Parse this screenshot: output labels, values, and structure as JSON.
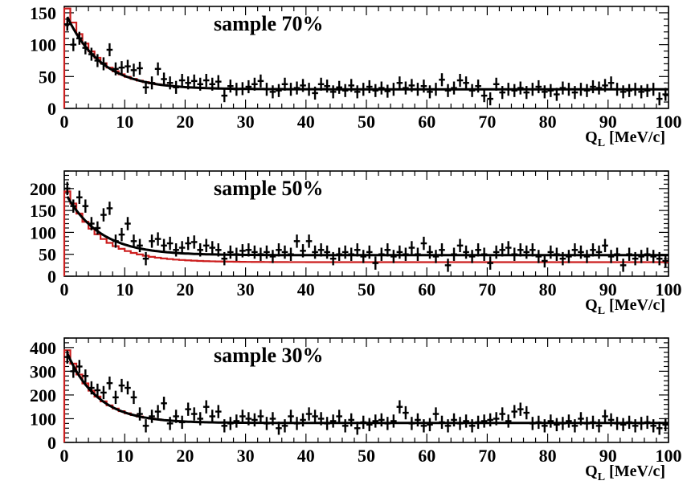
{
  "chart_data": [
    {
      "type": "scatter",
      "title": "sample 70%",
      "xlabel": "Q",
      "xlabel_sub": "L",
      "xlabel_unit": " [MeV/c]",
      "xlim": [
        0,
        100
      ],
      "ylim": [
        0,
        160
      ],
      "xticks": [
        0,
        10,
        20,
        30,
        40,
        50,
        60,
        70,
        80,
        90,
        100
      ],
      "yticks": [
        0,
        50,
        100,
        150
      ],
      "grid": false,
      "amplitude": 130,
      "tail": 30,
      "decay": 5.5,
      "model_offset": 0,
      "points": [
        [
          0.5,
          132
        ],
        [
          1.5,
          100
        ],
        [
          2.5,
          110
        ],
        [
          3.5,
          95
        ],
        [
          4.5,
          85
        ],
        [
          5.5,
          75
        ],
        [
          6.5,
          70
        ],
        [
          7.5,
          92
        ],
        [
          8.5,
          62
        ],
        [
          9.5,
          64
        ],
        [
          10.5,
          66
        ],
        [
          11.5,
          60
        ],
        [
          12.5,
          63
        ],
        [
          13.5,
          33
        ],
        [
          14.5,
          40
        ],
        [
          15.5,
          62
        ],
        [
          16.5,
          46
        ],
        [
          17.5,
          40
        ],
        [
          18.5,
          33
        ],
        [
          19.5,
          44
        ],
        [
          20.5,
          40
        ],
        [
          21.5,
          43
        ],
        [
          22.5,
          38
        ],
        [
          23.5,
          44
        ],
        [
          24.5,
          38
        ],
        [
          25.5,
          42
        ],
        [
          26.5,
          20
        ],
        [
          27.5,
          35
        ],
        [
          28.5,
          30
        ],
        [
          29.5,
          31
        ],
        [
          30.5,
          34
        ],
        [
          31.5,
          38
        ],
        [
          32.5,
          43
        ],
        [
          33.5,
          30
        ],
        [
          34.5,
          26
        ],
        [
          35.5,
          28
        ],
        [
          36.5,
          38
        ],
        [
          37.5,
          30
        ],
        [
          38.5,
          32
        ],
        [
          39.5,
          36
        ],
        [
          40.5,
          30
        ],
        [
          41.5,
          24
        ],
        [
          42.5,
          38
        ],
        [
          43.5,
          35
        ],
        [
          44.5,
          26
        ],
        [
          45.5,
          33
        ],
        [
          46.5,
          28
        ],
        [
          47.5,
          36
        ],
        [
          48.5,
          26
        ],
        [
          49.5,
          30
        ],
        [
          50.5,
          34
        ],
        [
          51.5,
          28
        ],
        [
          52.5,
          32
        ],
        [
          53.5,
          27
        ],
        [
          54.5,
          30
        ],
        [
          55.5,
          40
        ],
        [
          56.5,
          32
        ],
        [
          57.5,
          36
        ],
        [
          58.5,
          30
        ],
        [
          59.5,
          35
        ],
        [
          60.5,
          26
        ],
        [
          61.5,
          30
        ],
        [
          62.5,
          45
        ],
        [
          63.5,
          28
        ],
        [
          64.5,
          32
        ],
        [
          65.5,
          44
        ],
        [
          66.5,
          40
        ],
        [
          67.5,
          28
        ],
        [
          68.5,
          35
        ],
        [
          69.5,
          20
        ],
        [
          70.5,
          15
        ],
        [
          71.5,
          38
        ],
        [
          72.5,
          25
        ],
        [
          73.5,
          30
        ],
        [
          74.5,
          28
        ],
        [
          75.5,
          32
        ],
        [
          76.5,
          25
        ],
        [
          77.5,
          30
        ],
        [
          78.5,
          34
        ],
        [
          79.5,
          26
        ],
        [
          80.5,
          28
        ],
        [
          81.5,
          22
        ],
        [
          82.5,
          32
        ],
        [
          83.5,
          30
        ],
        [
          84.5,
          25
        ],
        [
          85.5,
          30
        ],
        [
          86.5,
          28
        ],
        [
          87.5,
          34
        ],
        [
          88.5,
          32
        ],
        [
          89.5,
          36
        ],
        [
          90.5,
          40
        ],
        [
          91.5,
          30
        ],
        [
          92.5,
          26
        ],
        [
          93.5,
          28
        ],
        [
          94.5,
          30
        ],
        [
          95.5,
          26
        ],
        [
          96.5,
          28
        ],
        [
          97.5,
          30
        ],
        [
          98.5,
          15
        ],
        [
          99.5,
          22
        ]
      ]
    },
    {
      "type": "scatter",
      "title": "sample 50%",
      "xlabel": "Q",
      "xlabel_sub": "L",
      "xlabel_unit": " [MeV/c]",
      "xlim": [
        0,
        100
      ],
      "ylim": [
        0,
        240
      ],
      "xticks": [
        0,
        10,
        20,
        30,
        40,
        50,
        60,
        70,
        80,
        90,
        100
      ],
      "yticks": [
        0,
        50,
        100,
        150,
        200
      ],
      "grid": false,
      "amplitude": 160,
      "tail": 40,
      "decay": 5.5,
      "model_offset": 8,
      "points": [
        [
          0.5,
          200
        ],
        [
          1.5,
          160
        ],
        [
          2.5,
          180
        ],
        [
          3.5,
          160
        ],
        [
          4.5,
          120
        ],
        [
          5.5,
          110
        ],
        [
          6.5,
          140
        ],
        [
          7.5,
          155
        ],
        [
          8.5,
          80
        ],
        [
          9.5,
          95
        ],
        [
          10.5,
          120
        ],
        [
          11.5,
          80
        ],
        [
          12.5,
          70
        ],
        [
          13.5,
          40
        ],
        [
          14.5,
          80
        ],
        [
          15.5,
          85
        ],
        [
          16.5,
          70
        ],
        [
          17.5,
          75
        ],
        [
          18.5,
          60
        ],
        [
          19.5,
          65
        ],
        [
          20.5,
          75
        ],
        [
          21.5,
          78
        ],
        [
          22.5,
          60
        ],
        [
          23.5,
          70
        ],
        [
          24.5,
          65
        ],
        [
          25.5,
          60
        ],
        [
          26.5,
          40
        ],
        [
          27.5,
          55
        ],
        [
          28.5,
          50
        ],
        [
          29.5,
          58
        ],
        [
          30.5,
          60
        ],
        [
          31.5,
          55
        ],
        [
          32.5,
          50
        ],
        [
          33.5,
          55
        ],
        [
          34.5,
          45
        ],
        [
          35.5,
          60
        ],
        [
          36.5,
          55
        ],
        [
          37.5,
          50
        ],
        [
          38.5,
          80
        ],
        [
          39.5,
          58
        ],
        [
          40.5,
          80
        ],
        [
          41.5,
          55
        ],
        [
          42.5,
          60
        ],
        [
          43.5,
          55
        ],
        [
          44.5,
          40
        ],
        [
          45.5,
          50
        ],
        [
          46.5,
          55
        ],
        [
          47.5,
          50
        ],
        [
          48.5,
          60
        ],
        [
          49.5,
          45
        ],
        [
          50.5,
          55
        ],
        [
          51.5,
          30
        ],
        [
          52.5,
          50
        ],
        [
          53.5,
          60
        ],
        [
          54.5,
          45
        ],
        [
          55.5,
          55
        ],
        [
          56.5,
          50
        ],
        [
          57.5,
          65
        ],
        [
          58.5,
          50
        ],
        [
          59.5,
          75
        ],
        [
          60.5,
          55
        ],
        [
          61.5,
          45
        ],
        [
          62.5,
          60
        ],
        [
          63.5,
          25
        ],
        [
          64.5,
          50
        ],
        [
          65.5,
          70
        ],
        [
          66.5,
          55
        ],
        [
          67.5,
          45
        ],
        [
          68.5,
          60
        ],
        [
          69.5,
          50
        ],
        [
          70.5,
          30
        ],
        [
          71.5,
          55
        ],
        [
          72.5,
          60
        ],
        [
          73.5,
          65
        ],
        [
          74.5,
          50
        ],
        [
          75.5,
          60
        ],
        [
          76.5,
          55
        ],
        [
          77.5,
          60
        ],
        [
          78.5,
          45
        ],
        [
          79.5,
          35
        ],
        [
          80.5,
          55
        ],
        [
          81.5,
          50
        ],
        [
          82.5,
          40
        ],
        [
          83.5,
          45
        ],
        [
          84.5,
          60
        ],
        [
          85.5,
          55
        ],
        [
          86.5,
          45
        ],
        [
          87.5,
          60
        ],
        [
          88.5,
          55
        ],
        [
          89.5,
          70
        ],
        [
          90.5,
          45
        ],
        [
          91.5,
          50
        ],
        [
          92.5,
          25
        ],
        [
          93.5,
          50
        ],
        [
          94.5,
          40
        ],
        [
          95.5,
          45
        ],
        [
          96.5,
          50
        ],
        [
          97.5,
          45
        ],
        [
          98.5,
          40
        ],
        [
          99.5,
          35
        ]
      ]
    },
    {
      "type": "scatter",
      "title": "sample 30%",
      "xlabel": "Q",
      "xlabel_sub": "L",
      "xlabel_unit": " [MeV/c]",
      "xlim": [
        0,
        100
      ],
      "ylim": [
        0,
        440
      ],
      "xticks": [
        0,
        10,
        20,
        30,
        40,
        50,
        60,
        70,
        80,
        90,
        100
      ],
      "yticks": [
        0,
        100,
        200,
        300,
        400
      ],
      "grid": false,
      "amplitude": 330,
      "tail": 82,
      "decay": 5,
      "model_offset": 0,
      "points": [
        [
          0.5,
          360
        ],
        [
          1.5,
          300
        ],
        [
          2.5,
          320
        ],
        [
          3.5,
          280
        ],
        [
          4.5,
          230
        ],
        [
          5.5,
          220
        ],
        [
          6.5,
          210
        ],
        [
          7.5,
          250
        ],
        [
          8.5,
          190
        ],
        [
          9.5,
          240
        ],
        [
          10.5,
          230
        ],
        [
          11.5,
          190
        ],
        [
          12.5,
          120
        ],
        [
          13.5,
          70
        ],
        [
          14.5,
          110
        ],
        [
          15.5,
          130
        ],
        [
          16.5,
          165
        ],
        [
          17.5,
          80
        ],
        [
          18.5,
          110
        ],
        [
          19.5,
          85
        ],
        [
          20.5,
          140
        ],
        [
          21.5,
          120
        ],
        [
          22.5,
          100
        ],
        [
          23.5,
          150
        ],
        [
          24.5,
          110
        ],
        [
          25.5,
          130
        ],
        [
          26.5,
          70
        ],
        [
          27.5,
          80
        ],
        [
          28.5,
          90
        ],
        [
          29.5,
          110
        ],
        [
          30.5,
          100
        ],
        [
          31.5,
          95
        ],
        [
          32.5,
          110
        ],
        [
          33.5,
          80
        ],
        [
          34.5,
          100
        ],
        [
          35.5,
          60
        ],
        [
          36.5,
          70
        ],
        [
          37.5,
          110
        ],
        [
          38.5,
          80
        ],
        [
          39.5,
          95
        ],
        [
          40.5,
          120
        ],
        [
          41.5,
          110
        ],
        [
          42.5,
          100
        ],
        [
          43.5,
          80
        ],
        [
          44.5,
          90
        ],
        [
          45.5,
          110
        ],
        [
          46.5,
          70
        ],
        [
          47.5,
          95
        ],
        [
          48.5,
          60
        ],
        [
          49.5,
          85
        ],
        [
          50.5,
          75
        ],
        [
          51.5,
          90
        ],
        [
          52.5,
          95
        ],
        [
          53.5,
          80
        ],
        [
          54.5,
          90
        ],
        [
          55.5,
          150
        ],
        [
          56.5,
          125
        ],
        [
          57.5,
          80
        ],
        [
          58.5,
          95
        ],
        [
          59.5,
          70
        ],
        [
          60.5,
          75
        ],
        [
          61.5,
          120
        ],
        [
          62.5,
          85
        ],
        [
          63.5,
          70
        ],
        [
          64.5,
          95
        ],
        [
          65.5,
          80
        ],
        [
          66.5,
          90
        ],
        [
          67.5,
          70
        ],
        [
          68.5,
          85
        ],
        [
          69.5,
          90
        ],
        [
          70.5,
          95
        ],
        [
          71.5,
          100
        ],
        [
          72.5,
          120
        ],
        [
          73.5,
          90
        ],
        [
          74.5,
          130
        ],
        [
          75.5,
          140
        ],
        [
          76.5,
          125
        ],
        [
          77.5,
          80
        ],
        [
          78.5,
          85
        ],
        [
          79.5,
          70
        ],
        [
          80.5,
          90
        ],
        [
          81.5,
          75
        ],
        [
          82.5,
          80
        ],
        [
          83.5,
          90
        ],
        [
          84.5,
          70
        ],
        [
          85.5,
          100
        ],
        [
          86.5,
          80
        ],
        [
          87.5,
          85
        ],
        [
          88.5,
          70
        ],
        [
          89.5,
          110
        ],
        [
          90.5,
          95
        ],
        [
          91.5,
          80
        ],
        [
          92.5,
          75
        ],
        [
          93.5,
          85
        ],
        [
          94.5,
          70
        ],
        [
          95.5,
          80
        ],
        [
          96.5,
          85
        ],
        [
          97.5,
          70
        ],
        [
          98.5,
          60
        ],
        [
          99.5,
          75
        ]
      ]
    }
  ],
  "colors": {
    "data": "#000000",
    "model_black": "#000000",
    "model_red": "#cc1e1e",
    "frame": "#000000"
  }
}
